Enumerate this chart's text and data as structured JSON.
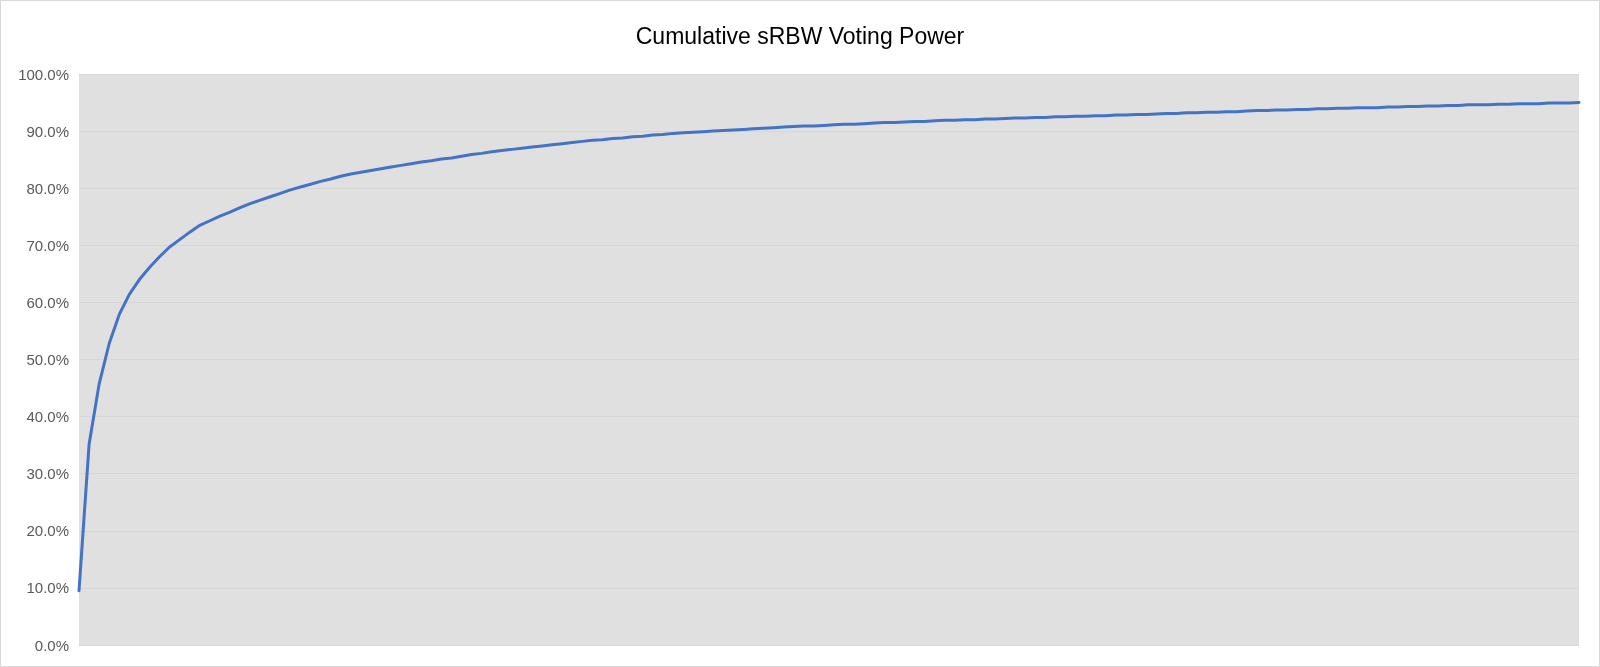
{
  "chart_data": {
    "type": "line",
    "title": "Cumulative sRBW Voting Power",
    "categories": [
      null,
      null,
      null,
      null,
      null,
      null,
      null,
      null,
      null,
      null,
      null,
      null,
      null,
      null,
      null,
      null,
      null,
      null,
      null,
      null,
      null,
      null,
      null,
      null,
      null,
      null,
      null,
      null,
      null,
      null,
      null,
      null,
      null,
      null,
      null,
      null,
      null,
      null,
      null,
      null,
      null,
      null,
      null,
      null,
      null,
      null,
      null,
      null,
      null,
      null,
      null,
      null,
      null,
      null,
      null,
      null,
      null,
      null,
      null,
      null,
      null,
      null,
      null,
      null,
      null,
      null,
      null,
      null,
      null,
      null,
      null,
      null,
      null,
      null,
      null,
      null,
      null,
      null,
      null,
      null,
      null,
      null,
      null,
      null,
      null,
      null,
      null,
      null,
      null,
      null,
      null,
      null,
      null,
      null,
      null,
      null,
      null,
      null,
      null,
      null,
      null,
      null,
      null,
      null,
      null,
      null,
      null,
      null,
      null,
      null,
      null,
      null,
      null,
      null,
      null,
      null,
      null,
      null,
      null,
      null,
      null,
      null,
      null,
      null,
      null,
      null,
      null,
      null,
      null,
      null,
      null,
      null,
      null,
      null,
      null,
      null,
      null,
      null,
      null,
      null,
      null,
      null,
      null,
      null,
      null,
      null,
      null,
      null,
      null,
      null
    ],
    "series": [
      {
        "color": "#4472c4",
        "values": [
          9.5,
          35.1,
          45.7,
          52.8,
          57.9,
          61.4,
          64.0,
          66.1,
          68.0,
          69.7,
          71.0,
          72.3,
          73.5,
          74.3,
          75.1,
          75.8,
          76.6,
          77.3,
          77.9,
          78.5,
          79.1,
          79.7,
          80.2,
          80.7,
          81.2,
          81.6,
          82.1,
          82.5,
          82.8,
          83.1,
          83.4,
          83.7,
          84.0,
          84.3,
          84.6,
          84.8,
          85.1,
          85.3,
          85.6,
          85.9,
          86.1,
          86.4,
          86.6,
          86.8,
          87.0,
          87.2,
          87.4,
          87.6,
          87.8,
          88.0,
          88.2,
          88.4,
          88.5,
          88.7,
          88.8,
          89.0,
          89.1,
          89.3,
          89.4,
          89.6,
          89.7,
          89.8,
          89.9,
          90.0,
          90.1,
          90.2,
          90.3,
          90.4,
          90.5,
          90.6,
          90.7,
          90.8,
          90.9,
          90.9,
          91.0,
          91.1,
          91.2,
          91.2,
          91.3,
          91.4,
          91.5,
          91.5,
          91.6,
          91.7,
          91.7,
          91.8,
          91.9,
          91.9,
          92.0,
          92.0,
          92.1,
          92.1,
          92.2,
          92.3,
          92.3,
          92.4,
          92.4,
          92.5,
          92.5,
          92.6,
          92.6,
          92.7,
          92.7,
          92.8,
          92.8,
          92.9,
          92.9,
          93.0,
          93.1,
          93.1,
          93.2,
          93.2,
          93.3,
          93.3,
          93.4,
          93.4,
          93.5,
          93.6,
          93.6,
          93.7,
          93.7,
          93.8,
          93.8,
          93.9,
          93.9,
          94.0,
          94.0,
          94.1,
          94.1,
          94.1,
          94.2,
          94.2,
          94.3,
          94.3,
          94.4,
          94.4,
          94.5,
          94.5,
          94.6,
          94.6,
          94.6,
          94.7,
          94.7,
          94.8,
          94.8,
          94.8,
          94.9,
          94.9,
          94.9,
          95.0
        ]
      }
    ],
    "ylim": [
      0,
      100
    ],
    "yticks": [
      {
        "value": 0,
        "label": "0.0%"
      },
      {
        "value": 10,
        "label": "10.0%"
      },
      {
        "value": 20,
        "label": "20.0%"
      },
      {
        "value": 30,
        "label": "30.0%"
      },
      {
        "value": 40,
        "label": "40.0%"
      },
      {
        "value": 50,
        "label": "50.0%"
      },
      {
        "value": 60,
        "label": "60.0%"
      },
      {
        "value": 70,
        "label": "70.0%"
      },
      {
        "value": 80,
        "label": "80.0%"
      },
      {
        "value": 90,
        "label": "90.0%"
      },
      {
        "value": 100,
        "label": "100.0%"
      }
    ],
    "grid": "y",
    "tick_labels": "y",
    "marker": "none",
    "line_style": "solid"
  }
}
